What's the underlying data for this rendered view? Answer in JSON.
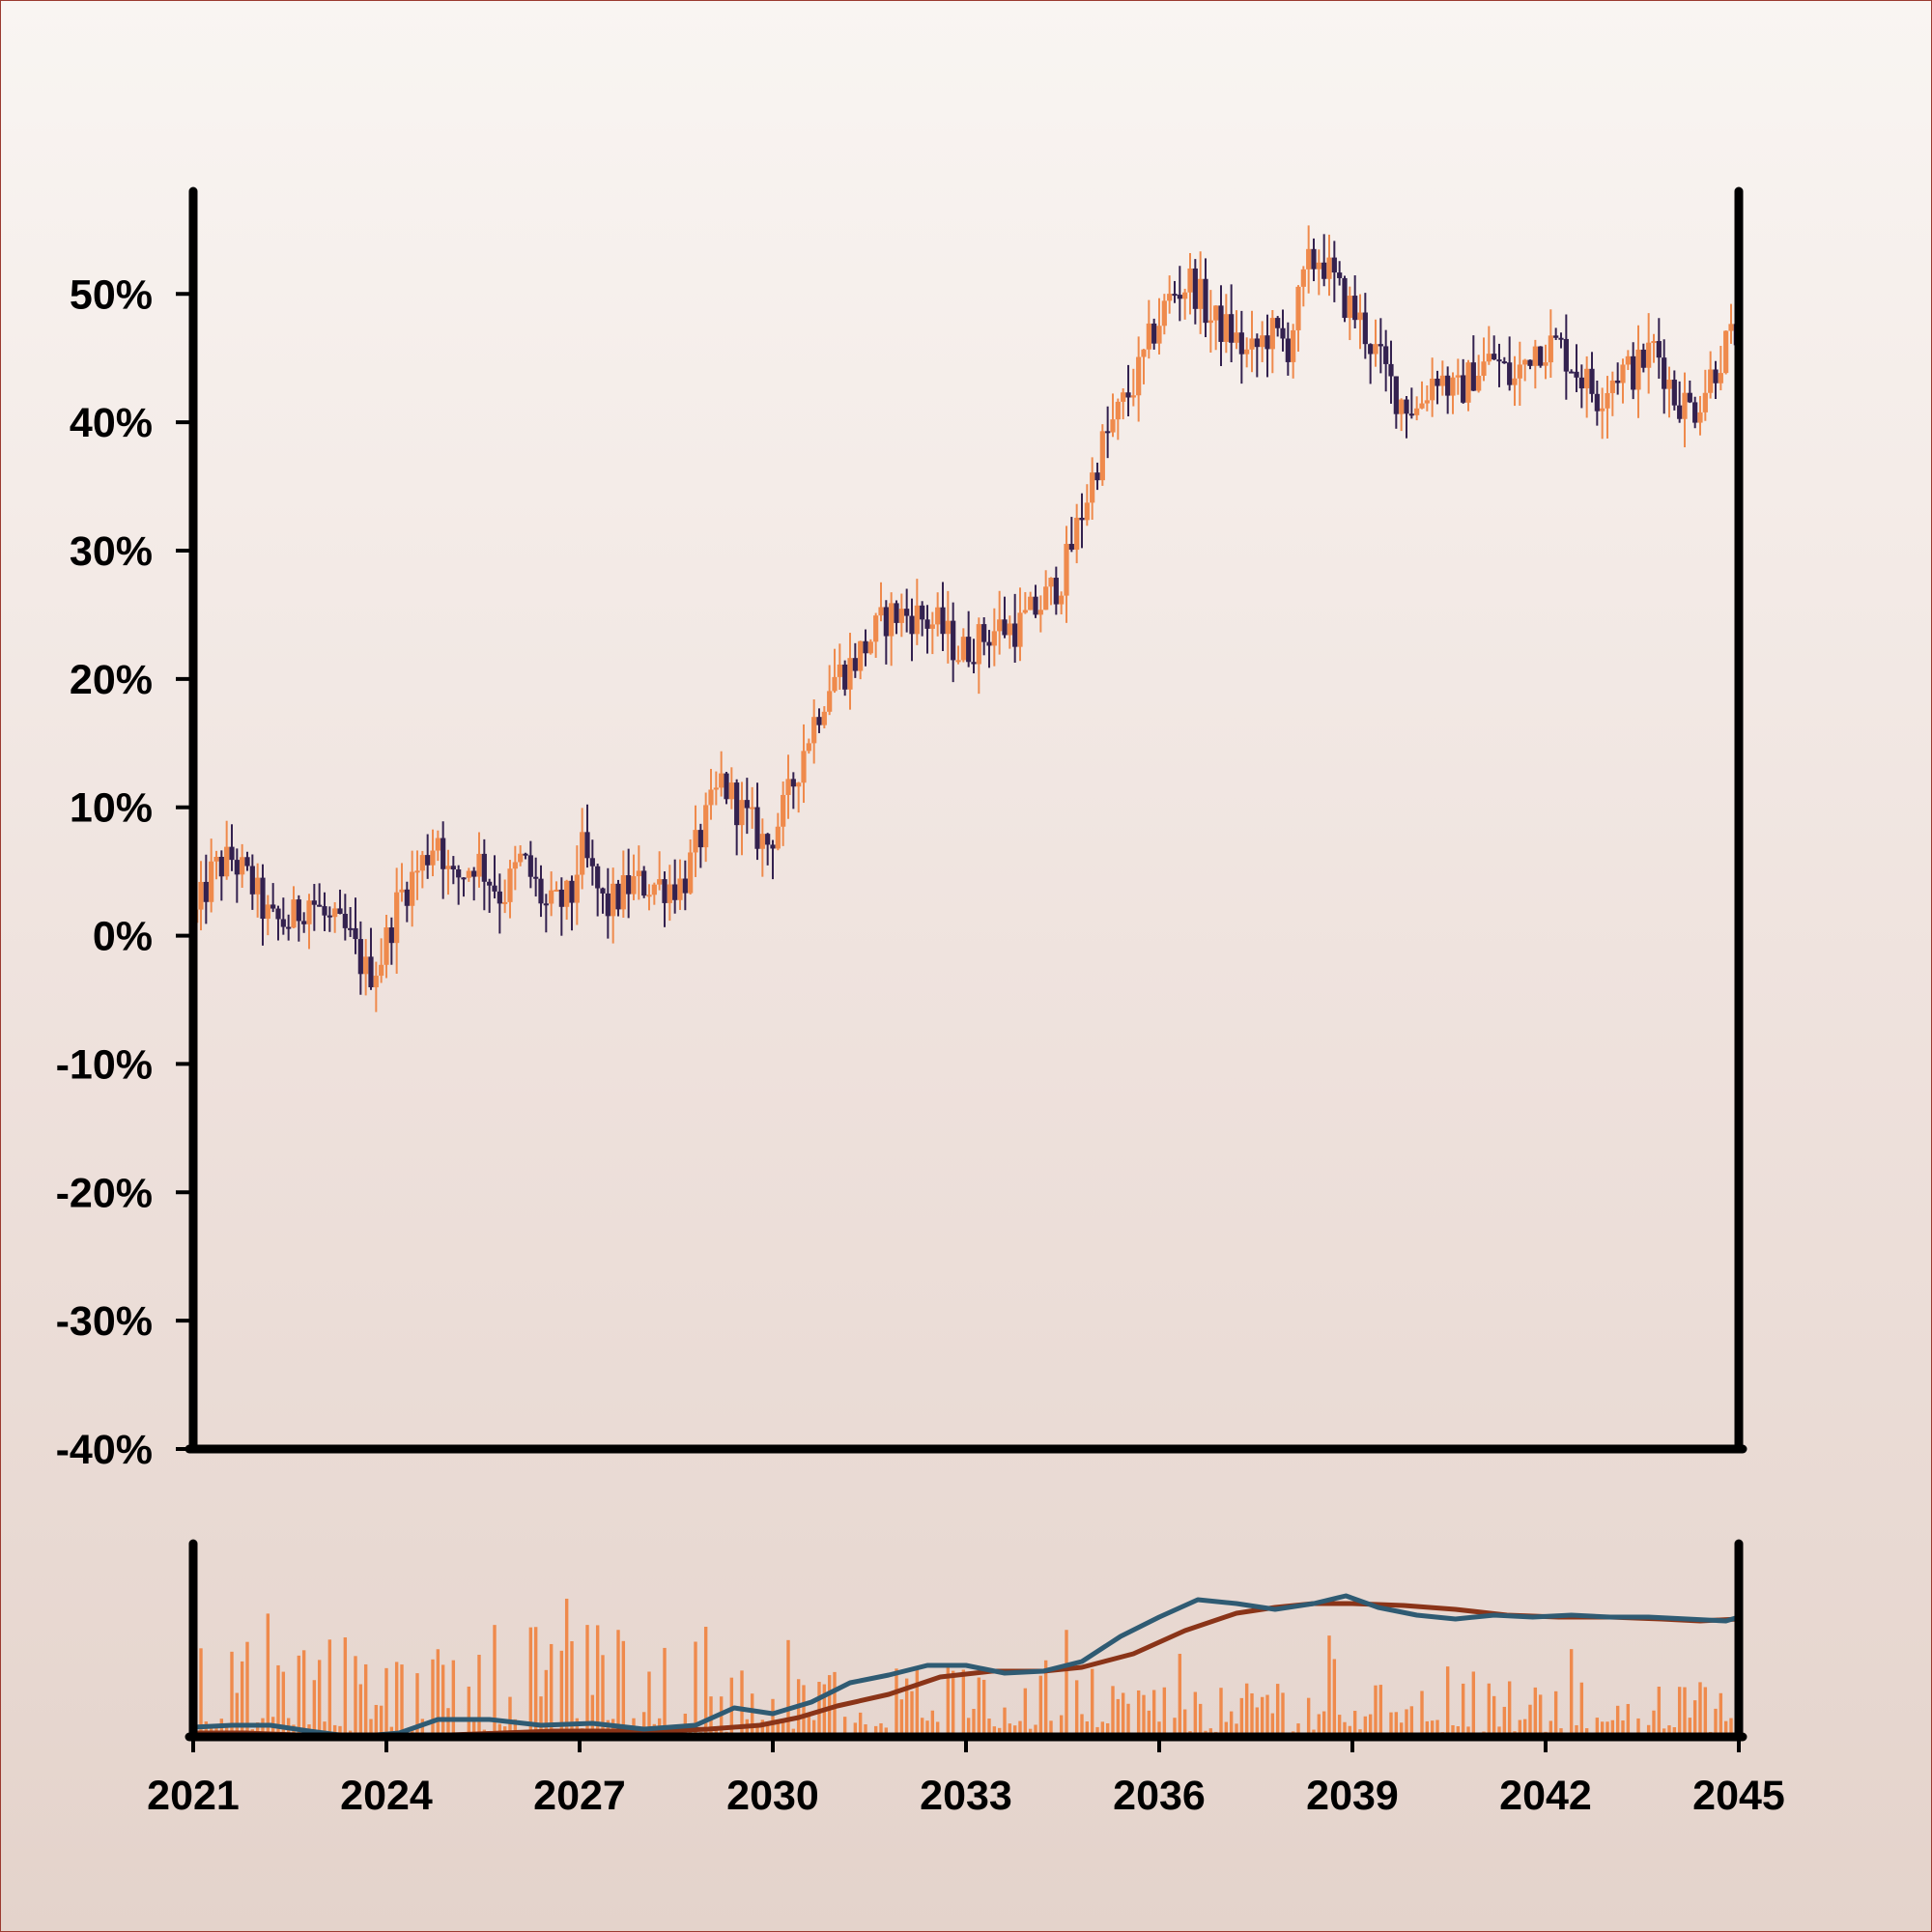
{
  "chart_data": {
    "type": "candlestick",
    "title": "",
    "xlabel": "",
    "ylabel": "",
    "ylim": [
      -40,
      58
    ],
    "xlim": [
      2021,
      2045
    ],
    "grid": false,
    "colors": {
      "up": "#ef8a4c",
      "down": "#33214f",
      "volume": "#ef8a4c",
      "ma_fast": "#2f5b73",
      "ma_slow": "#8a3418",
      "axis": "#000000"
    },
    "y_ticks": [
      {
        "value": -40,
        "label": "-40%"
      },
      {
        "value": -30,
        "label": "-30%"
      },
      {
        "value": -20,
        "label": "-20%"
      },
      {
        "value": -10,
        "label": "-10%"
      },
      {
        "value": 0,
        "label": "0%"
      },
      {
        "value": 10,
        "label": "10%"
      },
      {
        "value": 20,
        "label": "20%"
      },
      {
        "value": 30,
        "label": "30%"
      },
      {
        "value": 40,
        "label": "40%"
      },
      {
        "value": 50,
        "label": "50%"
      }
    ],
    "x_ticks": [
      {
        "value": 2021,
        "label": "2021"
      },
      {
        "value": 2024,
        "label": "2024"
      },
      {
        "value": 2027,
        "label": "2027"
      },
      {
        "value": 2030,
        "label": "2030"
      },
      {
        "value": 2033,
        "label": "2033"
      },
      {
        "value": 2036,
        "label": "2036"
      },
      {
        "value": 2039,
        "label": "2039"
      },
      {
        "value": 2042,
        "label": "2042"
      },
      {
        "value": 2045,
        "label": "2045"
      }
    ],
    "price_path": [
      [
        2021.0,
        1
      ],
      [
        2021.3,
        5
      ],
      [
        2021.6,
        6
      ],
      [
        2021.9,
        4
      ],
      [
        2022.2,
        1
      ],
      [
        2022.5,
        1
      ],
      [
        2022.8,
        3
      ],
      [
        2023.1,
        1
      ],
      [
        2023.4,
        0
      ],
      [
        2023.7,
        -3
      ],
      [
        2023.9,
        -2
      ],
      [
        2024.2,
        3
      ],
      [
        2024.6,
        6
      ],
      [
        2024.8,
        8
      ],
      [
        2025.0,
        4
      ],
      [
        2025.4,
        6
      ],
      [
        2025.8,
        3
      ],
      [
        2026.1,
        6
      ],
      [
        2026.5,
        2
      ],
      [
        2026.9,
        3
      ],
      [
        2027.0,
        7
      ],
      [
        2027.4,
        2
      ],
      [
        2027.8,
        4
      ],
      [
        2028.2,
        4
      ],
      [
        2028.6,
        4
      ],
      [
        2028.9,
        8
      ],
      [
        2029.2,
        12
      ],
      [
        2029.6,
        9
      ],
      [
        2029.9,
        7
      ],
      [
        2030.2,
        10
      ],
      [
        2030.5,
        15
      ],
      [
        2030.9,
        20
      ],
      [
        2031.2,
        21
      ],
      [
        2031.5,
        23
      ],
      [
        2031.8,
        25
      ],
      [
        2032.2,
        25
      ],
      [
        2032.6,
        24
      ],
      [
        2032.9,
        22
      ],
      [
        2033.2,
        23
      ],
      [
        2033.5,
        24
      ],
      [
        2033.8,
        24
      ],
      [
        2034.2,
        26
      ],
      [
        2034.5,
        28
      ],
      [
        2034.8,
        33
      ],
      [
        2035.1,
        38
      ],
      [
        2035.4,
        41
      ],
      [
        2035.7,
        44
      ],
      [
        2035.9,
        47
      ],
      [
        2036.2,
        50
      ],
      [
        2036.5,
        51
      ],
      [
        2036.8,
        48
      ],
      [
        2037.1,
        47
      ],
      [
        2037.4,
        45
      ],
      [
        2037.7,
        47
      ],
      [
        2038.0,
        46
      ],
      [
        2038.3,
        52
      ],
      [
        2038.5,
        53
      ],
      [
        2038.8,
        50
      ],
      [
        2039.1,
        48
      ],
      [
        2039.4,
        45
      ],
      [
        2039.7,
        42
      ],
      [
        2040.0,
        41
      ],
      [
        2040.3,
        44
      ],
      [
        2040.6,
        42
      ],
      [
        2040.9,
        44
      ],
      [
        2041.2,
        45
      ],
      [
        2041.5,
        43
      ],
      [
        2041.8,
        46
      ],
      [
        2042.2,
        46
      ],
      [
        2042.5,
        44
      ],
      [
        2042.8,
        42
      ],
      [
        2043.1,
        44
      ],
      [
        2043.4,
        44
      ],
      [
        2043.7,
        46
      ],
      [
        2044.0,
        42
      ],
      [
        2044.3,
        41
      ],
      [
        2044.6,
        44
      ],
      [
        2044.8,
        46
      ],
      [
        2045.0,
        47
      ]
    ],
    "volume_ma_fast": [
      [
        2021.0,
        0.05
      ],
      [
        2021.6,
        0.06
      ],
      [
        2022.2,
        0.06
      ],
      [
        2022.8,
        0.03
      ],
      [
        2023.5,
        0.0
      ],
      [
        2024.2,
        0.02
      ],
      [
        2024.8,
        0.09
      ],
      [
        2025.6,
        0.09
      ],
      [
        2026.4,
        0.06
      ],
      [
        2027.2,
        0.07
      ],
      [
        2028.0,
        0.04
      ],
      [
        2028.8,
        0.06
      ],
      [
        2029.4,
        0.15
      ],
      [
        2030.0,
        0.12
      ],
      [
        2030.6,
        0.18
      ],
      [
        2031.2,
        0.28
      ],
      [
        2031.8,
        0.32
      ],
      [
        2032.4,
        0.37
      ],
      [
        2033.0,
        0.37
      ],
      [
        2033.6,
        0.33
      ],
      [
        2034.2,
        0.34
      ],
      [
        2034.8,
        0.39
      ],
      [
        2035.4,
        0.52
      ],
      [
        2036.0,
        0.62
      ],
      [
        2036.6,
        0.71
      ],
      [
        2037.2,
        0.69
      ],
      [
        2037.8,
        0.66
      ],
      [
        2038.4,
        0.69
      ],
      [
        2038.9,
        0.73
      ],
      [
        2039.4,
        0.67
      ],
      [
        2040.0,
        0.63
      ],
      [
        2040.6,
        0.61
      ],
      [
        2041.2,
        0.63
      ],
      [
        2041.8,
        0.62
      ],
      [
        2042.4,
        0.63
      ],
      [
        2043.0,
        0.62
      ],
      [
        2043.6,
        0.62
      ],
      [
        2044.2,
        0.61
      ],
      [
        2044.8,
        0.6
      ],
      [
        2045.0,
        0.62
      ]
    ],
    "volume_ma_slow": [
      [
        2021.0,
        0.02
      ],
      [
        2021.8,
        0.02
      ],
      [
        2022.6,
        0.01
      ],
      [
        2023.4,
        0.0
      ],
      [
        2024.2,
        0.0
      ],
      [
        2025.0,
        0.01
      ],
      [
        2025.8,
        0.02
      ],
      [
        2026.6,
        0.03
      ],
      [
        2027.4,
        0.03
      ],
      [
        2028.2,
        0.03
      ],
      [
        2029.0,
        0.04
      ],
      [
        2029.8,
        0.06
      ],
      [
        2030.4,
        0.1
      ],
      [
        2031.0,
        0.16
      ],
      [
        2031.8,
        0.22
      ],
      [
        2032.6,
        0.31
      ],
      [
        2033.4,
        0.34
      ],
      [
        2034.2,
        0.34
      ],
      [
        2034.8,
        0.36
      ],
      [
        2035.6,
        0.43
      ],
      [
        2036.4,
        0.55
      ],
      [
        2037.2,
        0.64
      ],
      [
        2037.8,
        0.67
      ],
      [
        2038.4,
        0.69
      ],
      [
        2039.0,
        0.69
      ],
      [
        2039.8,
        0.68
      ],
      [
        2040.6,
        0.66
      ],
      [
        2041.4,
        0.63
      ],
      [
        2042.2,
        0.62
      ],
      [
        2043.0,
        0.62
      ],
      [
        2043.8,
        0.61
      ],
      [
        2044.4,
        0.6
      ],
      [
        2045.0,
        0.61
      ]
    ]
  }
}
